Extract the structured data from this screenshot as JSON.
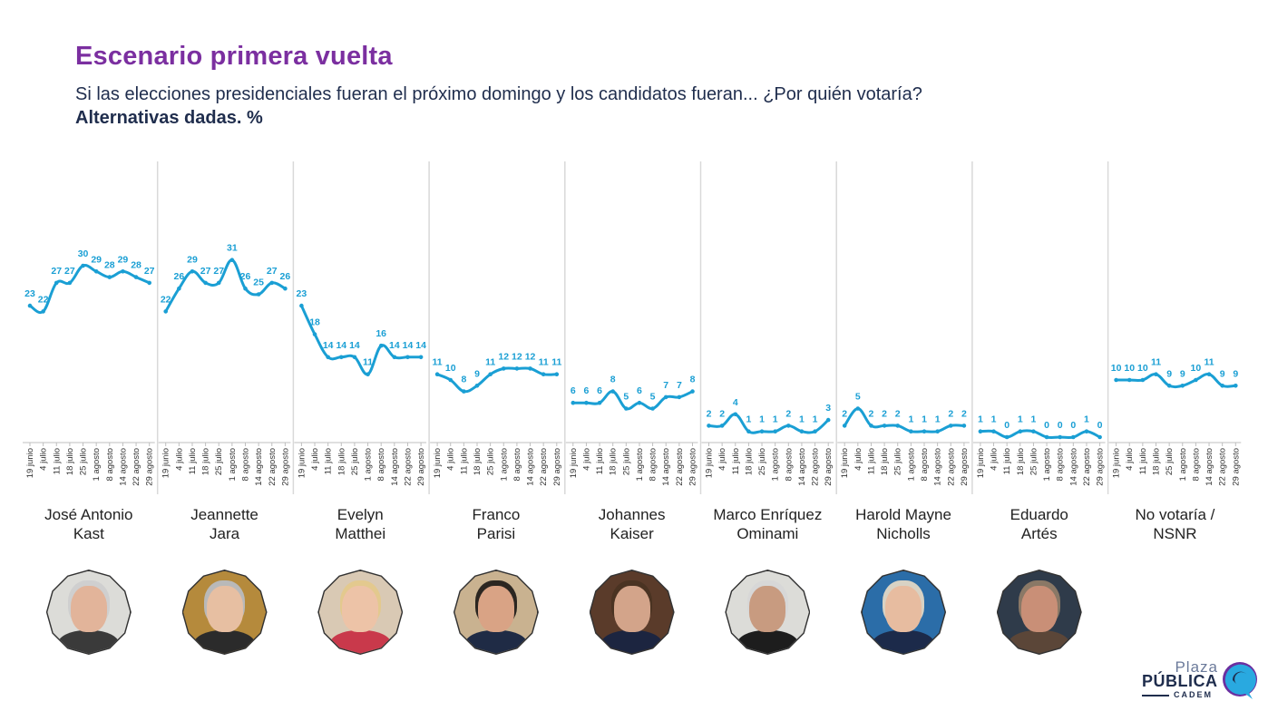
{
  "header": {
    "title": "Escenario primera vuelta",
    "subtitle": "Si las elecciones presidenciales fueran el próximo domingo y los candidatos fueran... ¿Por quién votaría?",
    "subtitle_bold": "Alternativas dadas. %"
  },
  "colors": {
    "line": "#1a9fd4",
    "title": "#7b2fa0",
    "text": "#1f2d4d"
  },
  "chart_data": {
    "type": "line",
    "title": "Escenario primera vuelta",
    "subtitle": "Si las elecciones presidenciales fueran el próximo domingo y los candidatos fueran... ¿Por quién votaría?",
    "ylabel": "Alternativas dadas. %",
    "x": [
      "19 junio",
      "4 julio",
      "11 julio",
      "18 julio",
      "25 julio",
      "1 agosto",
      "8 agosto",
      "14 agosto",
      "22 agosto",
      "29 agosto"
    ],
    "ylim": [
      0,
      45
    ],
    "grid": false,
    "series": [
      {
        "name": "José Antonio Kast",
        "name_lines": [
          "José Antonio",
          "Kast"
        ],
        "values": [
          23,
          22,
          27,
          27,
          30,
          29,
          28,
          29,
          28,
          27
        ]
      },
      {
        "name": "Jeannette Jara",
        "name_lines": [
          "Jeannette",
          "Jara"
        ],
        "values": [
          22,
          26,
          29,
          27,
          27,
          31,
          26,
          25,
          27,
          26
        ]
      },
      {
        "name": "Evelyn Matthei",
        "name_lines": [
          "Evelyn",
          "Matthei"
        ],
        "values": [
          23,
          18,
          14,
          14,
          14,
          11,
          16,
          14,
          14,
          14
        ]
      },
      {
        "name": "Franco Parisi",
        "name_lines": [
          "Franco",
          "Parisi"
        ],
        "values": [
          11,
          10,
          8,
          9,
          11,
          12,
          12,
          12,
          11,
          11
        ]
      },
      {
        "name": "Johannes Kaiser",
        "name_lines": [
          "Johannes",
          "Kaiser"
        ],
        "values": [
          6,
          6,
          6,
          8,
          5,
          6,
          5,
          7,
          7,
          8
        ]
      },
      {
        "name": "Marco Enríquez Ominami",
        "name_lines": [
          "Marco Enríquez",
          "Ominami"
        ],
        "values": [
          2,
          2,
          4,
          1,
          1,
          1,
          2,
          1,
          1,
          3
        ]
      },
      {
        "name": "Harold Mayne Nicholls",
        "name_lines": [
          "Harold Mayne",
          "Nicholls"
        ],
        "values": [
          2,
          5,
          2,
          2,
          2,
          1,
          1,
          1,
          2,
          2
        ]
      },
      {
        "name": "Eduardo Artés",
        "name_lines": [
          "Eduardo",
          "Artés"
        ],
        "values": [
          1,
          1,
          0,
          1,
          1,
          0,
          0,
          0,
          1,
          0
        ]
      },
      {
        "name": "No votaría / NSNR",
        "name_lines": [
          "No votaría /",
          "NSNR"
        ],
        "values": [
          10,
          10,
          10,
          11,
          9,
          9,
          10,
          11,
          9,
          9
        ]
      }
    ]
  },
  "photos": [
    {
      "bg": "#dcdcd8",
      "face": "#e2b49a",
      "hair": "#cfcfcf",
      "torso": "#3a3a3a"
    },
    {
      "bg": "#b58a3c",
      "face": "#e7bfa2",
      "hair": "#b9b9b9",
      "torso": "#2b2b2b"
    },
    {
      "bg": "#d9c9b4",
      "face": "#edc3a7",
      "hair": "#e3c98e",
      "torso": "#c9394b"
    },
    {
      "bg": "#c9b290",
      "face": "#d9a385",
      "hair": "#2b2621",
      "torso": "#1f2b45"
    },
    {
      "bg": "#5a3b2a",
      "face": "#d3a48a",
      "hair": "#4a3322",
      "torso": "#1c2540"
    },
    {
      "bg": "#dcdcd8",
      "face": "#c89b80",
      "hair": "#d7d7d7",
      "torso": "#1d1d1d"
    },
    {
      "bg": "#2b6da8",
      "face": "#e7bca0",
      "hair": "#d8d2c4",
      "torso": "#1c2a4a"
    },
    {
      "bg": "#2f3b4a",
      "face": "#c98f77",
      "hair": "#8a7866",
      "torso": "#5b4638"
    }
  ],
  "logo": {
    "line1": "Plaza",
    "line2": "PÚBLICA",
    "line3": "CADEM"
  }
}
